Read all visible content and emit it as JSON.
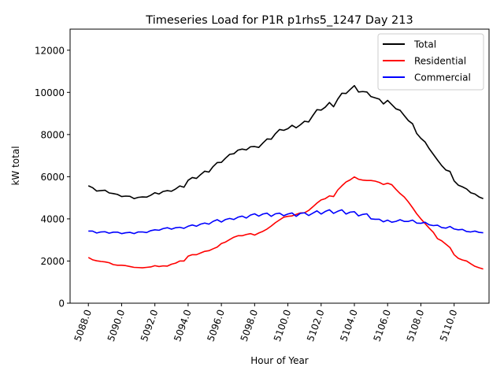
{
  "chart_data": {
    "type": "line",
    "title": "Timeseries Load for P1R p1rhs5_1247  Day 213",
    "xlabel": "Hour of Year",
    "ylabel": "kW total",
    "xlim": [
      5086.9,
      5112.1
    ],
    "ylim": [
      0,
      13000
    ],
    "xticks": [
      5088,
      5090,
      5092,
      5094,
      5096,
      5098,
      5100,
      5102,
      5104,
      5106,
      5108,
      5110
    ],
    "xtick_labels": [
      "5088.0",
      "5090.0",
      "5092.0",
      "5094.0",
      "5096.0",
      "5098.0",
      "5100.0",
      "5102.0",
      "5104.0",
      "5106.0",
      "5108.0",
      "5110.0"
    ],
    "yticks": [
      0,
      2000,
      4000,
      6000,
      8000,
      10000,
      12000
    ],
    "ytick_labels": [
      "0",
      "2000",
      "4000",
      "6000",
      "8000",
      "10000",
      "12000"
    ],
    "grid": false,
    "legend_position": "top-right",
    "x_start": 5088,
    "x_step": 0.25,
    "series": [
      {
        "name": "Total",
        "color": "#000000",
        "values": [
          5570,
          5480,
          5320,
          5340,
          5360,
          5230,
          5200,
          5160,
          5060,
          5080,
          5070,
          4960,
          5020,
          5040,
          5030,
          5120,
          5240,
          5180,
          5300,
          5340,
          5310,
          5420,
          5560,
          5500,
          5830,
          5960,
          5920,
          6100,
          6260,
          6220,
          6480,
          6670,
          6680,
          6880,
          7060,
          7090,
          7260,
          7310,
          7270,
          7420,
          7430,
          7390,
          7600,
          7790,
          7780,
          8040,
          8240,
          8200,
          8280,
          8440,
          8320,
          8460,
          8630,
          8600,
          8900,
          9180,
          9160,
          9300,
          9520,
          9320,
          9680,
          9960,
          9950,
          10140,
          10320,
          10020,
          10040,
          10020,
          9800,
          9740,
          9680,
          9450,
          9620,
          9420,
          9220,
          9150,
          8900,
          8660,
          8510,
          8050,
          7820,
          7650,
          7330,
          7060,
          6790,
          6530,
          6320,
          6250,
          5800,
          5600,
          5520,
          5420,
          5240,
          5180,
          5040,
          4960
        ]
      },
      {
        "name": "Residential",
        "color": "#ff0000",
        "values": [
          2170,
          2060,
          2010,
          1980,
          1960,
          1920,
          1830,
          1800,
          1800,
          1780,
          1740,
          1700,
          1690,
          1680,
          1700,
          1720,
          1780,
          1740,
          1770,
          1760,
          1850,
          1900,
          2000,
          2000,
          2230,
          2300,
          2300,
          2380,
          2460,
          2490,
          2580,
          2660,
          2830,
          2900,
          3020,
          3130,
          3200,
          3200,
          3260,
          3300,
          3230,
          3330,
          3410,
          3520,
          3660,
          3820,
          3950,
          4080,
          4120,
          4140,
          4210,
          4280,
          4290,
          4400,
          4570,
          4750,
          4900,
          4960,
          5090,
          5060,
          5370,
          5570,
          5750,
          5850,
          5990,
          5880,
          5840,
          5820,
          5820,
          5790,
          5730,
          5630,
          5690,
          5620,
          5400,
          5200,
          5040,
          4800,
          4530,
          4240,
          4000,
          3780,
          3560,
          3360,
          3060,
          2960,
          2800,
          2640,
          2300,
          2130,
          2050,
          2000,
          1870,
          1750,
          1680,
          1620
        ]
      },
      {
        "name": "Commercial",
        "color": "#0000ff",
        "values": [
          3420,
          3420,
          3330,
          3380,
          3390,
          3320,
          3370,
          3370,
          3300,
          3340,
          3360,
          3300,
          3380,
          3380,
          3350,
          3440,
          3480,
          3460,
          3540,
          3580,
          3510,
          3580,
          3600,
          3550,
          3650,
          3710,
          3650,
          3750,
          3800,
          3750,
          3880,
          3960,
          3850,
          3970,
          4020,
          3970,
          4080,
          4130,
          4040,
          4180,
          4240,
          4130,
          4230,
          4270,
          4120,
          4240,
          4270,
          4150,
          4230,
          4280,
          4120,
          4260,
          4290,
          4160,
          4270,
          4380,
          4230,
          4350,
          4430,
          4260,
          4360,
          4430,
          4230,
          4320,
          4340,
          4140,
          4210,
          4240,
          4000,
          3980,
          3980,
          3860,
          3940,
          3840,
          3880,
          3960,
          3880,
          3880,
          3940,
          3800,
          3790,
          3840,
          3720,
          3680,
          3700,
          3590,
          3560,
          3640,
          3520,
          3480,
          3500,
          3400,
          3380,
          3420,
          3360,
          3340
        ]
      }
    ]
  }
}
